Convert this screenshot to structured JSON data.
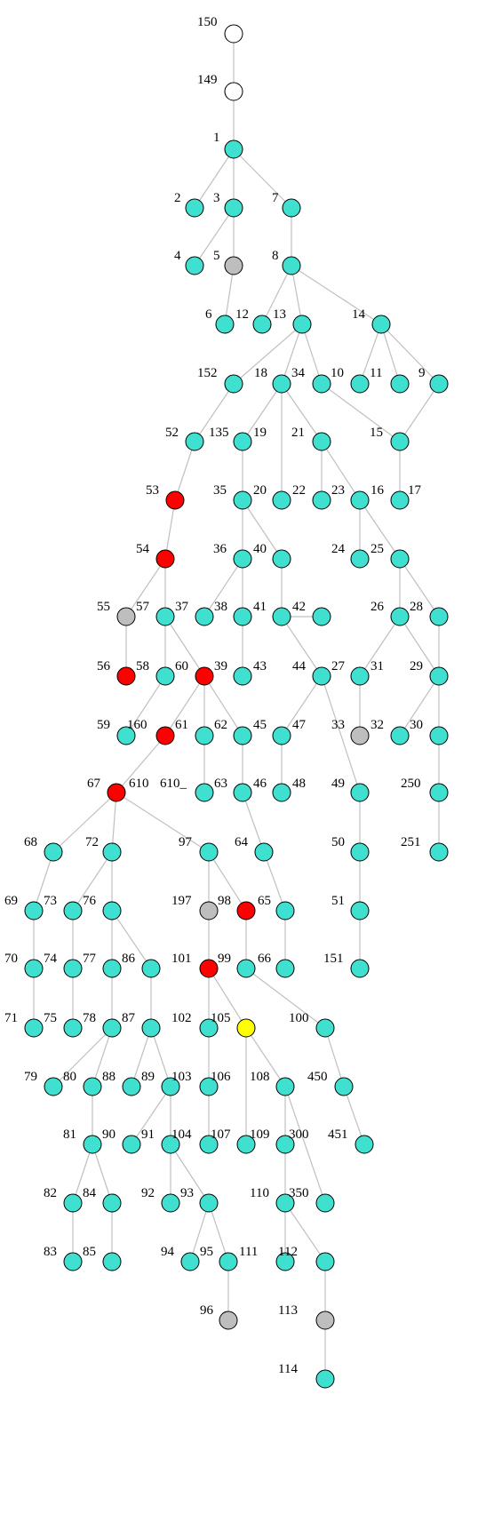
{
  "colors": {
    "default": "#40e0d0",
    "white": "#ffffff",
    "red": "#ff0000",
    "gray": "#bebebe",
    "yellow": "#ffff00",
    "edge": "#c0c0c0"
  },
  "nodes": [
    {
      "id": "150",
      "label": "150",
      "color": "white"
    },
    {
      "id": "149",
      "label": "149",
      "color": "white"
    },
    {
      "id": "1",
      "label": "1",
      "color": "default"
    },
    {
      "id": "2",
      "label": "2",
      "color": "default"
    },
    {
      "id": "3",
      "label": "3",
      "color": "default"
    },
    {
      "id": "7",
      "label": "7",
      "color": "default"
    },
    {
      "id": "4",
      "label": "4",
      "color": "default"
    },
    {
      "id": "5",
      "label": "5",
      "color": "gray"
    },
    {
      "id": "8",
      "label": "8",
      "color": "default"
    },
    {
      "id": "6",
      "label": "6",
      "color": "default"
    },
    {
      "id": "12",
      "label": "12",
      "color": "default"
    },
    {
      "id": "13",
      "label": "13",
      "color": "default"
    },
    {
      "id": "14",
      "label": "14",
      "color": "default"
    },
    {
      "id": "152",
      "label": "152",
      "color": "default"
    },
    {
      "id": "18",
      "label": "18",
      "color": "default"
    },
    {
      "id": "34",
      "label": "34",
      "color": "default"
    },
    {
      "id": "10",
      "label": "10",
      "color": "default"
    },
    {
      "id": "11",
      "label": "11",
      "color": "default"
    },
    {
      "id": "9",
      "label": "9",
      "color": "default"
    },
    {
      "id": "52",
      "label": "52",
      "color": "default"
    },
    {
      "id": "135",
      "label": "135",
      "color": "default"
    },
    {
      "id": "19",
      "label": "19",
      "color": "default"
    },
    {
      "id": "21",
      "label": "21",
      "color": "default"
    },
    {
      "id": "15",
      "label": "15",
      "color": "default"
    },
    {
      "id": "53",
      "label": "53",
      "color": "red"
    },
    {
      "id": "35",
      "label": "35",
      "color": "default"
    },
    {
      "id": "20",
      "label": "20",
      "color": "default"
    },
    {
      "id": "22",
      "label": "22",
      "color": "default"
    },
    {
      "id": "23",
      "label": "23",
      "color": "default"
    },
    {
      "id": "16",
      "label": "16",
      "color": "default"
    },
    {
      "id": "17",
      "label": "17",
      "color": "default"
    },
    {
      "id": "54",
      "label": "54",
      "color": "red"
    },
    {
      "id": "36",
      "label": "36",
      "color": "default"
    },
    {
      "id": "40",
      "label": "40",
      "color": "default"
    },
    {
      "id": "24",
      "label": "24",
      "color": "default"
    },
    {
      "id": "25",
      "label": "25",
      "color": "default"
    },
    {
      "id": "55",
      "label": "55",
      "color": "gray"
    },
    {
      "id": "57",
      "label": "57",
      "color": "default"
    },
    {
      "id": "37",
      "label": "37",
      "color": "default"
    },
    {
      "id": "38",
      "label": "38",
      "color": "default"
    },
    {
      "id": "41",
      "label": "41",
      "color": "default"
    },
    {
      "id": "42",
      "label": "42",
      "color": "default"
    },
    {
      "id": "26",
      "label": "26",
      "color": "default"
    },
    {
      "id": "28",
      "label": "28",
      "color": "default"
    },
    {
      "id": "56",
      "label": "56",
      "color": "red"
    },
    {
      "id": "58",
      "label": "58",
      "color": "default"
    },
    {
      "id": "60",
      "label": "60",
      "color": "red"
    },
    {
      "id": "39",
      "label": "39",
      "color": "default"
    },
    {
      "id": "43",
      "label": "43",
      "color": "default"
    },
    {
      "id": "44",
      "label": "44",
      "color": "default"
    },
    {
      "id": "27",
      "label": "27",
      "color": "default"
    },
    {
      "id": "31",
      "label": "31",
      "color": "default"
    },
    {
      "id": "29",
      "label": "29",
      "color": "default"
    },
    {
      "id": "59",
      "label": "59",
      "color": "default"
    },
    {
      "id": "160",
      "label": "160",
      "color": "default"
    },
    {
      "id": "61",
      "label": "61",
      "color": "red"
    },
    {
      "id": "62",
      "label": "62",
      "color": "default"
    },
    {
      "id": "45",
      "label": "45",
      "color": "default"
    },
    {
      "id": "47",
      "label": "47",
      "color": "default"
    },
    {
      "id": "33",
      "label": "33",
      "color": "gray"
    },
    {
      "id": "32",
      "label": "32",
      "color": "default"
    },
    {
      "id": "30",
      "label": "30",
      "color": "default"
    },
    {
      "id": "67",
      "label": "67",
      "color": "red"
    },
    {
      "id": "610",
      "label": "610",
      "color": "default"
    },
    {
      "id": "610_",
      "label": "610_",
      "color": "default"
    },
    {
      "id": "63",
      "label": "63",
      "color": "default"
    },
    {
      "id": "46",
      "label": "46",
      "color": "default"
    },
    {
      "id": "48",
      "label": "48",
      "color": "default"
    },
    {
      "id": "49",
      "label": "49",
      "color": "default"
    },
    {
      "id": "250",
      "label": "250",
      "color": "default"
    },
    {
      "id": "68",
      "label": "68",
      "color": "default"
    },
    {
      "id": "72",
      "label": "72",
      "color": "default"
    },
    {
      "id": "97",
      "label": "97",
      "color": "default"
    },
    {
      "id": "64",
      "label": "64",
      "color": "default"
    },
    {
      "id": "50",
      "label": "50",
      "color": "default"
    },
    {
      "id": "251",
      "label": "251",
      "color": "default"
    },
    {
      "id": "69",
      "label": "69",
      "color": "default"
    },
    {
      "id": "73",
      "label": "73",
      "color": "default"
    },
    {
      "id": "76",
      "label": "76",
      "color": "default"
    },
    {
      "id": "197",
      "label": "197",
      "color": "gray"
    },
    {
      "id": "98",
      "label": "98",
      "color": "red"
    },
    {
      "id": "65",
      "label": "65",
      "color": "default"
    },
    {
      "id": "51",
      "label": "51",
      "color": "default"
    },
    {
      "id": "70",
      "label": "70",
      "color": "default"
    },
    {
      "id": "74",
      "label": "74",
      "color": "default"
    },
    {
      "id": "77",
      "label": "77",
      "color": "default"
    },
    {
      "id": "86",
      "label": "86",
      "color": "default"
    },
    {
      "id": "101",
      "label": "101",
      "color": "red"
    },
    {
      "id": "99",
      "label": "99",
      "color": "default"
    },
    {
      "id": "66",
      "label": "66",
      "color": "default"
    },
    {
      "id": "151",
      "label": "151",
      "color": "default"
    },
    {
      "id": "71",
      "label": "71",
      "color": "default"
    },
    {
      "id": "75",
      "label": "75",
      "color": "default"
    },
    {
      "id": "78",
      "label": "78",
      "color": "default"
    },
    {
      "id": "87",
      "label": "87",
      "color": "default"
    },
    {
      "id": "102",
      "label": "102",
      "color": "default"
    },
    {
      "id": "105",
      "label": "105",
      "color": "yellow"
    },
    {
      "id": "100",
      "label": "100",
      "color": "default"
    },
    {
      "id": "79",
      "label": "79",
      "color": "default"
    },
    {
      "id": "80",
      "label": "80",
      "color": "default"
    },
    {
      "id": "88",
      "label": "88",
      "color": "default"
    },
    {
      "id": "89",
      "label": "89",
      "color": "default"
    },
    {
      "id": "103",
      "label": "103",
      "color": "default"
    },
    {
      "id": "106",
      "label": "106",
      "color": "default"
    },
    {
      "id": "108",
      "label": "108",
      "color": "default"
    },
    {
      "id": "450",
      "label": "450",
      "color": "default"
    },
    {
      "id": "81",
      "label": "81",
      "color": "default"
    },
    {
      "id": "90",
      "label": "90",
      "color": "default"
    },
    {
      "id": "91",
      "label": "91",
      "color": "default"
    },
    {
      "id": "104",
      "label": "104",
      "color": "default"
    },
    {
      "id": "107",
      "label": "107",
      "color": "default"
    },
    {
      "id": "109",
      "label": "109",
      "color": "default"
    },
    {
      "id": "300",
      "label": "300",
      "color": "default"
    },
    {
      "id": "451",
      "label": "451",
      "color": "default"
    },
    {
      "id": "82",
      "label": "82",
      "color": "default"
    },
    {
      "id": "84",
      "label": "84",
      "color": "default"
    },
    {
      "id": "92",
      "label": "92",
      "color": "default"
    },
    {
      "id": "93",
      "label": "93",
      "color": "default"
    },
    {
      "id": "110",
      "label": "110",
      "color": "default"
    },
    {
      "id": "350",
      "label": "350",
      "color": "default"
    },
    {
      "id": "83",
      "label": "83",
      "color": "default"
    },
    {
      "id": "85",
      "label": "85",
      "color": "default"
    },
    {
      "id": "94",
      "label": "94",
      "color": "default"
    },
    {
      "id": "95",
      "label": "95",
      "color": "default"
    },
    {
      "id": "111",
      "label": "111",
      "color": "default"
    },
    {
      "id": "112",
      "label": "112",
      "color": "default"
    },
    {
      "id": "96",
      "label": "96",
      "color": "gray"
    },
    {
      "id": "113",
      "label": "113",
      "color": "gray"
    },
    {
      "id": "114",
      "label": "114",
      "color": "default"
    }
  ],
  "edges": [
    [
      "150",
      "149"
    ],
    [
      "149",
      "1"
    ],
    [
      "1",
      "2"
    ],
    [
      "1",
      "3"
    ],
    [
      "1",
      "7"
    ],
    [
      "3",
      "4"
    ],
    [
      "3",
      "5"
    ],
    [
      "5",
      "6"
    ],
    [
      "7",
      "8"
    ],
    [
      "8",
      "12"
    ],
    [
      "8",
      "13"
    ],
    [
      "8",
      "14"
    ],
    [
      "13",
      "18"
    ],
    [
      "13",
      "34"
    ],
    [
      "13",
      "10"
    ],
    [
      "14",
      "11"
    ],
    [
      "14",
      "9"
    ],
    [
      "14",
      "17"
    ],
    [
      "18",
      "52"
    ],
    [
      "52",
      "53"
    ],
    [
      "53",
      "54"
    ],
    [
      "54",
      "55"
    ],
    [
      "54",
      "37"
    ],
    [
      "55",
      "56"
    ],
    [
      "37",
      "58"
    ],
    [
      "37",
      "60"
    ],
    [
      "58",
      "59"
    ],
    [
      "60",
      "61"
    ],
    [
      "60",
      "62"
    ],
    [
      "60",
      "45"
    ],
    [
      "61",
      "67"
    ],
    [
      "62",
      "63"
    ],
    [
      "45",
      "46"
    ],
    [
      "46",
      "64"
    ],
    [
      "64",
      "65"
    ],
    [
      "65",
      "66"
    ],
    [
      "67",
      "68"
    ],
    [
      "67",
      "72"
    ],
    [
      "67",
      "97"
    ],
    [
      "68",
      "69"
    ],
    [
      "69",
      "70"
    ],
    [
      "70",
      "71"
    ],
    [
      "72",
      "73"
    ],
    [
      "72",
      "76"
    ],
    [
      "73",
      "74"
    ],
    [
      "74",
      "75"
    ],
    [
      "76",
      "77"
    ],
    [
      "76",
      "86"
    ],
    [
      "77",
      "78"
    ],
    [
      "78",
      "79"
    ],
    [
      "78",
      "80"
    ],
    [
      "80",
      "81"
    ],
    [
      "81",
      "82"
    ],
    [
      "81",
      "84"
    ],
    [
      "82",
      "83"
    ],
    [
      "84",
      "85"
    ],
    [
      "86",
      "87"
    ],
    [
      "87",
      "88"
    ],
    [
      "87",
      "89"
    ],
    [
      "88",
      "90"
    ],
    [
      "89",
      "104"
    ],
    [
      "104",
      "92"
    ],
    [
      "104",
      "93"
    ],
    [
      "93",
      "94"
    ],
    [
      "93",
      "95"
    ],
    [
      "95",
      "96"
    ],
    [
      "97",
      "197"
    ],
    [
      "97",
      "98"
    ],
    [
      "197",
      "101"
    ],
    [
      "101",
      "102"
    ],
    [
      "101",
      "105"
    ],
    [
      "102",
      "106"
    ],
    [
      "106",
      "107"
    ],
    [
      "105",
      "108"
    ],
    [
      "105",
      "109"
    ],
    [
      "108",
      "300"
    ],
    [
      "108",
      "350"
    ],
    [
      "300",
      "110"
    ],
    [
      "110",
      "111"
    ],
    [
      "110",
      "112"
    ],
    [
      "112",
      "113"
    ],
    [
      "113",
      "114"
    ],
    [
      "98",
      "99"
    ],
    [
      "99",
      "100"
    ],
    [
      "100",
      "450"
    ],
    [
      "450",
      "451"
    ],
    [
      "34",
      "19"
    ],
    [
      "34",
      "21"
    ],
    [
      "34",
      "20"
    ],
    [
      "19",
      "35"
    ],
    [
      "35",
      "36"
    ],
    [
      "35",
      "40"
    ],
    [
      "36",
      "38"
    ],
    [
      "36",
      "41"
    ],
    [
      "40",
      "42"
    ],
    [
      "40",
      "44"
    ],
    [
      "42",
      "27"
    ],
    [
      "42",
      "47"
    ],
    [
      "47",
      "48"
    ],
    [
      "47",
      "49"
    ],
    [
      "49",
      "50"
    ],
    [
      "50",
      "51"
    ],
    [
      "51",
      "151"
    ],
    [
      "21",
      "22"
    ],
    [
      "21",
      "23"
    ],
    [
      "23",
      "24"
    ],
    [
      "23",
      "25"
    ],
    [
      "25",
      "26"
    ],
    [
      "25",
      "28"
    ],
    [
      "26",
      "31"
    ],
    [
      "26",
      "29"
    ],
    [
      "31",
      "33"
    ],
    [
      "29",
      "32"
    ],
    [
      "28",
      "30"
    ],
    [
      "30",
      "250"
    ],
    [
      "250",
      "251"
    ],
    [
      "10",
      "15"
    ],
    [
      "15",
      "16"
    ],
    [
      "15",
      "17"
    ]
  ]
}
